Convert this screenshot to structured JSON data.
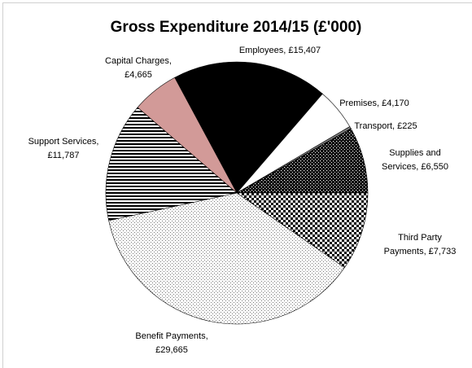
{
  "chart_data": {
    "type": "pie",
    "title": "Gross Expenditure 2014/15 (£'000)",
    "values": [
      15407,
      4170,
      225,
      6550,
      7733,
      29665,
      11787,
      4665
    ],
    "value_labels": [
      "Employees, £15,407",
      "Premises, £4,170",
      "Transport, £225",
      "Supplies and Services, £6,550",
      "Third Party Payments, £7,733",
      "Benefit Payments, £29,665",
      "Support Services, £11,787",
      "Capital Charges, £4,665"
    ],
    "colors": [
      "#000000",
      "#ffffff",
      "#808080",
      "url(#pat-dark-dots)",
      "url(#pat-check)",
      "url(#pat-light-dots)",
      "url(#pat-stripes)",
      "#d29a98"
    ]
  }
}
